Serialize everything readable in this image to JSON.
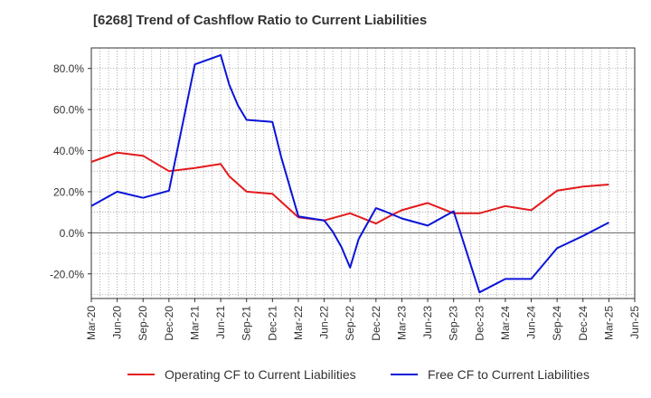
{
  "chart_data": {
    "type": "line",
    "title": "[6268]  Trend of Cashflow Ratio to Current Liabilities",
    "xlabel": "",
    "ylabel": "",
    "x_ticks": [
      "Mar-20",
      "Jun-20",
      "Sep-20",
      "Dec-20",
      "Mar-21",
      "Jun-21",
      "Sep-21",
      "Dec-21",
      "Mar-22",
      "Jun-22",
      "Sep-22",
      "Dec-22",
      "Mar-23",
      "Jun-23",
      "Sep-23",
      "Dec-23",
      "Mar-24",
      "Jun-24",
      "Sep-24",
      "Dec-24",
      "Mar-25",
      "Jun-25"
    ],
    "ylim": [
      -32,
      90
    ],
    "y_ticks": [
      -20,
      0,
      20,
      40,
      60,
      80
    ],
    "y_tick_labels": [
      "-20.0%",
      "0.0%",
      "20.0%",
      "40.0%",
      "60.0%",
      "80.0%"
    ],
    "grid": true,
    "legend_position": "bottom",
    "series": [
      {
        "name": "Operating CF to Current Liabilities",
        "color": "#e31a1c",
        "points": [
          [
            "Mar-20",
            34.5
          ],
          [
            "Jun-20",
            39.0
          ],
          [
            "Sep-20",
            37.5
          ],
          [
            "Dec-20",
            30.0
          ],
          [
            "Mar-21",
            31.5
          ],
          [
            "Jun-21",
            33.5
          ],
          [
            "Jul-21",
            27.5
          ],
          [
            "Sep-21",
            20.0
          ],
          [
            "Dec-21",
            19.0
          ],
          [
            "Mar-22",
            7.5
          ],
          [
            "Jun-22",
            6.0
          ],
          [
            "Sep-22",
            9.5
          ],
          [
            "Dec-22",
            4.5
          ],
          [
            "Feb-23",
            9.0
          ],
          [
            "Mar-23",
            11.0
          ],
          [
            "Jun-23",
            14.5
          ],
          [
            "Sep-23",
            9.5
          ],
          [
            "Dec-23",
            9.5
          ],
          [
            "Mar-24",
            13.0
          ],
          [
            "Jun-24",
            11.0
          ],
          [
            "Sep-24",
            20.5
          ],
          [
            "Dec-24",
            22.5
          ],
          [
            "Mar-25",
            23.5
          ]
        ]
      },
      {
        "name": "Free CF to Current Liabilities",
        "color": "#0a14d8",
        "points": [
          [
            "Mar-20",
            13.0
          ],
          [
            "Jun-20",
            20.0
          ],
          [
            "Sep-20",
            17.0
          ],
          [
            "Dec-20",
            20.5
          ],
          [
            "Mar-21",
            82.0
          ],
          [
            "Jun-21",
            86.5
          ],
          [
            "Jul-21",
            72.0
          ],
          [
            "Aug-21",
            62.0
          ],
          [
            "Sep-21",
            55.0
          ],
          [
            "Dec-21",
            54.0
          ],
          [
            "Jan-22",
            37.0
          ],
          [
            "Mar-22",
            8.0
          ],
          [
            "Jun-22",
            6.0
          ],
          [
            "Jul-22",
            0.5
          ],
          [
            "Aug-22",
            -7.0
          ],
          [
            "Sep-22",
            -17.0
          ],
          [
            "Oct-22",
            -3.0
          ],
          [
            "Dec-22",
            12.0
          ],
          [
            "Jan-23",
            10.5
          ],
          [
            "Mar-23",
            7.0
          ],
          [
            "Jun-23",
            3.5
          ],
          [
            "Sep-23",
            10.5
          ],
          [
            "Dec-23",
            -29.0
          ],
          [
            "Mar-24",
            -22.5
          ],
          [
            "Jun-24",
            -22.5
          ],
          [
            "Sep-24",
            -7.5
          ],
          [
            "Dec-24",
            -1.5
          ],
          [
            "Mar-25",
            5.0
          ]
        ]
      }
    ]
  }
}
